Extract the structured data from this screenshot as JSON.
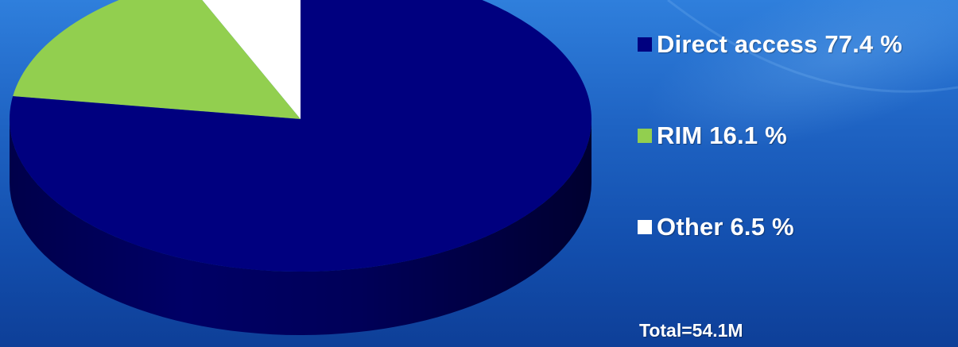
{
  "chart_data": {
    "type": "pie",
    "categories": [
      "Direct access",
      "RIM",
      "Other"
    ],
    "values": [
      77.4,
      16.1,
      6.5
    ],
    "unit": "%",
    "colors": [
      "#00007f",
      "#92cf4f",
      "#ffffff"
    ],
    "legend_placement": "right",
    "legend": [
      {
        "label": "Direct access 77.4 %",
        "color": "#00007f"
      },
      {
        "label": "RIM 16.1 %",
        "color": "#92cf4f"
      },
      {
        "label": "Other 6.5 %",
        "color": "#ffffff"
      }
    ],
    "annotation": "Total=54.1M",
    "style": "3d"
  }
}
